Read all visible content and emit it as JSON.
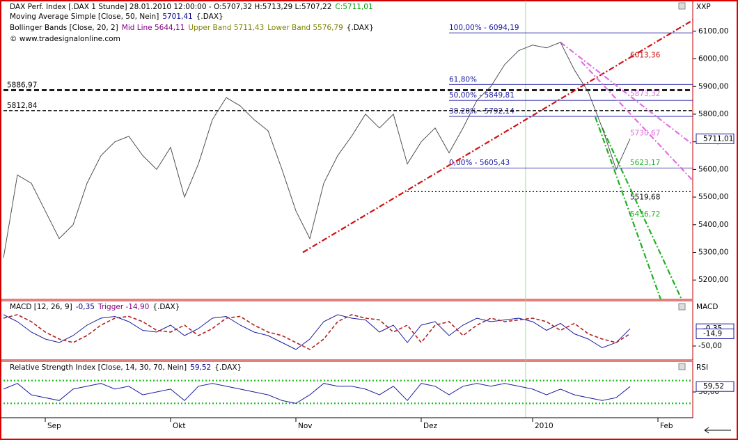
{
  "chart_data": [
    {
      "type": "line",
      "axis_title": "XXP",
      "header": [
        [
          {
            "text": "DAX Perf. Index [.DAX  1 Stunde] 28.01.2010 12:00:00 - O:5707,32 H:5713,29 L:5707,22",
            "color": "#000000"
          },
          {
            "text": "C:5711,01",
            "color": "#00a000"
          }
        ],
        [
          {
            "text": "Moving Average Simple [Close, 50, Nein]",
            "color": "#000000"
          },
          {
            "text": "5701,41",
            "color": "#00008b"
          },
          {
            "text": "{.DAX}",
            "color": "#000000"
          }
        ],
        [
          {
            "text": "Bollinger Bands [Close, 20, 2]",
            "color": "#000000"
          },
          {
            "text": "Mid Line 5644,11",
            "color": "#800080"
          },
          {
            "text": "Upper Band 5711,43",
            "color": "#808000"
          },
          {
            "text": "Lower Band 5576,79",
            "color": "#808000"
          },
          {
            "text": "{.DAX}",
            "color": "#000000"
          }
        ],
        [
          {
            "text": "© www.tradesignalonline.com",
            "color": "#000000"
          }
        ]
      ],
      "ylim": [
        5130,
        6213
      ],
      "yticks": [
        {
          "value": 5200,
          "label": "5200,00"
        },
        {
          "value": 5300,
          "label": "5300,00"
        },
        {
          "value": 5400,
          "label": "5400,00"
        },
        {
          "value": 5500,
          "label": "5500,00"
        },
        {
          "value": 5600,
          "label": "5600,00"
        },
        {
          "value": 5700,
          "label": "5700,00"
        },
        {
          "value": 5800,
          "label": "5800,00"
        },
        {
          "value": 5900,
          "label": "5900,00"
        },
        {
          "value": 6000,
          "label": "6000,00"
        },
        {
          "value": 6100,
          "label": "6100,00"
        }
      ],
      "series": [
        {
          "color": "#505050",
          "style": "solid",
          "values": [
            5280,
            5580,
            5550,
            5450,
            5350,
            5400,
            5550,
            5650,
            5700,
            5720,
            5650,
            5600,
            5680,
            5500,
            5620,
            5780,
            5860,
            5830,
            5780,
            5740,
            5600,
            5450,
            5350,
            5550,
            5650,
            5720,
            5800,
            5750,
            5800,
            5620,
            5700,
            5750,
            5660,
            5750,
            5850,
            5900,
            5980,
            6030,
            6050,
            6040,
            6060,
            5960,
            5880,
            5750,
            5600,
            5711.01,
            null,
            null,
            null,
            null
          ]
        }
      ],
      "levels": [
        {
          "value": 6094.19,
          "label": "100,00% - 6094,19",
          "from": 32,
          "style": "fib",
          "color": "#1a1aa0"
        },
        {
          "value": 5907.48,
          "label": "61,80%",
          "from": 32,
          "style": "fib",
          "color": "#1a1aa0"
        },
        {
          "value": 5849.81,
          "label": "50,00% - 5849,81",
          "from": 32,
          "style": "fib",
          "color": "#1a1aa0"
        },
        {
          "value": 5792.14,
          "label": "38,20% - 5792,14",
          "from": 32,
          "style": "fib",
          "color": "#1a1aa0"
        },
        {
          "value": 5605.43,
          "label": "0,00% - 5605,43",
          "from": 32,
          "style": "fib",
          "color": "#1a1aa0"
        },
        {
          "value": 5886.97,
          "label": "5886,97",
          "from": 0,
          "style": "thick-dashed",
          "color": "#000000"
        },
        {
          "value": 5812.84,
          "label": "5812,84",
          "from": 0,
          "style": "dashed",
          "color": "#000000"
        },
        {
          "value": 5519.68,
          "label": "5519,68",
          "from": 29,
          "style": "dotted",
          "color": "#000000"
        }
      ],
      "trendlines": [
        {
          "from": [
            21.5,
            5300
          ],
          "to": [
            49.5,
            6140
          ],
          "color": "#d01010",
          "label": {
            "value": 6013.36,
            "label": "6013,36"
          }
        },
        {
          "from": [
            40,
            6060
          ],
          "to": [
            49.5,
            5690
          ],
          "color": "#e070e0",
          "label": {
            "value": 5873.32,
            "label": "5873,32"
          }
        },
        {
          "from": [
            41.5,
            5990
          ],
          "to": [
            49.5,
            5560
          ],
          "color": "#e070e0",
          "label": {
            "value": 5730.67,
            "label": "5730,67"
          }
        },
        {
          "from": [
            42.5,
            5790
          ],
          "to": [
            47.2,
            5130
          ],
          "color": "#20b020",
          "label": {
            "value": 5623.17,
            "label": "5623,17"
          }
        },
        {
          "from": [
            43,
            5750
          ],
          "to": [
            48.7,
            5130
          ],
          "color": "#20b020",
          "label": {
            "value": 5436.72,
            "label": "5436,72"
          }
        }
      ],
      "markers": [
        {
          "value": 5711.01,
          "label": "5711,01"
        }
      ]
    },
    {
      "type": "line",
      "axis_title": "MACD",
      "header": [
        [
          {
            "text": "MACD [12, 26, 9]",
            "color": "#000000"
          },
          {
            "text": "-0,35",
            "color": "#00008b"
          },
          {
            "text": "Trigger -14,90",
            "color": "#800080"
          },
          {
            "text": "{.DAX}",
            "color": "#000000"
          }
        ]
      ],
      "ylim": [
        -90,
        80
      ],
      "yticks": [
        {
          "value": -50,
          "label": "-50,00"
        }
      ],
      "series": [
        {
          "color": "#1a1aa0",
          "style": "solid",
          "values": [
            40,
            20,
            -10,
            -30,
            -40,
            -20,
            10,
            30,
            35,
            20,
            -5,
            -10,
            10,
            -20,
            0,
            30,
            35,
            10,
            -10,
            -20,
            -40,
            -60,
            -30,
            20,
            40,
            30,
            25,
            -10,
            10,
            -40,
            10,
            20,
            -20,
            10,
            30,
            20,
            25,
            30,
            20,
            -5,
            15,
            -15,
            -30,
            -55,
            -40,
            -0.35,
            null,
            null,
            null,
            null
          ]
        },
        {
          "color": "#b02020",
          "style": "dashed",
          "values": [
            30,
            40,
            20,
            -10,
            -30,
            -40,
            -20,
            10,
            30,
            35,
            20,
            -5,
            -10,
            10,
            -20,
            0,
            30,
            35,
            10,
            -10,
            -20,
            -40,
            -60,
            -30,
            20,
            40,
            30,
            25,
            -10,
            10,
            -40,
            10,
            20,
            -20,
            10,
            30,
            20,
            25,
            30,
            20,
            -5,
            15,
            -15,
            -30,
            -40,
            -14.9,
            null,
            null,
            null,
            null
          ]
        }
      ],
      "markers": [
        {
          "value": -0.35,
          "label": "-0,35"
        },
        {
          "value": -14.9,
          "label": "-14,9"
        }
      ]
    },
    {
      "type": "line",
      "axis_title": "RSI",
      "header": [
        [
          {
            "text": "Relative Strength Index [Close, 14, 30, 70, Nein]",
            "color": "#000000"
          },
          {
            "text": "59,52",
            "color": "#00008b"
          },
          {
            "text": "{.DAX}",
            "color": "#000000"
          }
        ]
      ],
      "ylim": [
        0,
        100
      ],
      "yticks": [
        {
          "value": 50,
          "label": "50,00"
        }
      ],
      "series": [
        {
          "color": "#1a1aa0",
          "style": "solid",
          "values": [
            55,
            65,
            45,
            40,
            35,
            55,
            60,
            65,
            55,
            60,
            45,
            50,
            55,
            35,
            60,
            65,
            60,
            55,
            50,
            45,
            35,
            30,
            45,
            65,
            60,
            60,
            55,
            45,
            60,
            35,
            65,
            60,
            45,
            60,
            65,
            60,
            65,
            60,
            55,
            45,
            55,
            45,
            40,
            35,
            40,
            59.52,
            null,
            null,
            null,
            null
          ]
        }
      ],
      "levels": [
        {
          "value": 70,
          "from": 0,
          "style": "green-dotted",
          "color": "#20c020"
        },
        {
          "value": 30,
          "from": 0,
          "style": "green-dotted",
          "color": "#20c020"
        }
      ],
      "markers": [
        {
          "value": 59.52,
          "label": "59,52"
        }
      ],
      "categories": [
        null,
        null,
        null,
        "Sep",
        null,
        null,
        null,
        null,
        null,
        null,
        null,
        null,
        "Okt",
        null,
        null,
        null,
        null,
        null,
        null,
        null,
        null,
        "Nov",
        null,
        null,
        null,
        null,
        null,
        null,
        null,
        null,
        "Dez",
        null,
        null,
        null,
        null,
        null,
        null,
        null,
        "2010",
        null,
        null,
        null,
        null,
        null,
        null,
        null,
        null,
        "Feb",
        null,
        null
      ]
    }
  ]
}
